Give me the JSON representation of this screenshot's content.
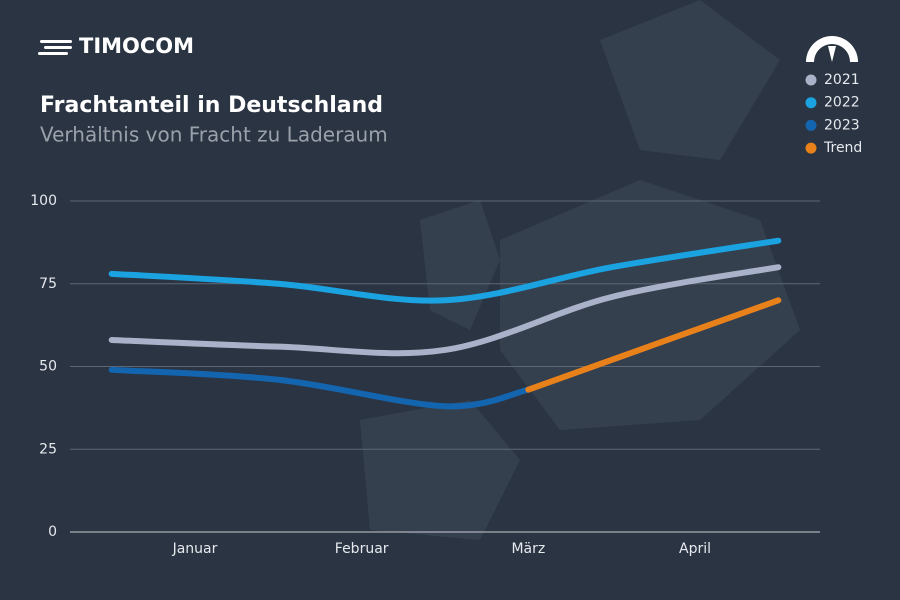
{
  "brand": "TIMOCOM",
  "chart_data": {
    "type": "line",
    "title": "Frachtanteil in Deutschland",
    "subtitle": "Verhältnis von Fracht zu Laderaum",
    "xlim": [
      0.25,
      4.75
    ],
    "xticks": [
      {
        "value": 1,
        "label": "Januar"
      },
      {
        "value": 2,
        "label": "Februar"
      },
      {
        "value": 3,
        "label": "März"
      },
      {
        "value": 4,
        "label": "April"
      }
    ],
    "ylim": [
      0,
      100
    ],
    "yticks": [
      0,
      25,
      50,
      75,
      100
    ],
    "grid": true,
    "legend": "top-right",
    "series": [
      {
        "name": "2021",
        "color": "#a9b2c8",
        "x": [
          0.5,
          1.5,
          2.5,
          3.5,
          4.5
        ],
        "values": [
          58,
          56,
          55,
          71,
          80
        ]
      },
      {
        "name": "2022",
        "color": "#1aa3e0",
        "x": [
          0.5,
          1.5,
          2.5,
          3.5,
          4.5
        ],
        "values": [
          78,
          75,
          70,
          80,
          88
        ]
      },
      {
        "name": "2023",
        "color": "#1465b0",
        "x": [
          0.5,
          1.5,
          2.5,
          3
        ],
        "values": [
          49,
          46,
          38,
          43
        ]
      },
      {
        "name": "Trend",
        "color": "#e8811a",
        "x": [
          3,
          4.5
        ],
        "values": [
          43,
          70
        ]
      }
    ]
  }
}
